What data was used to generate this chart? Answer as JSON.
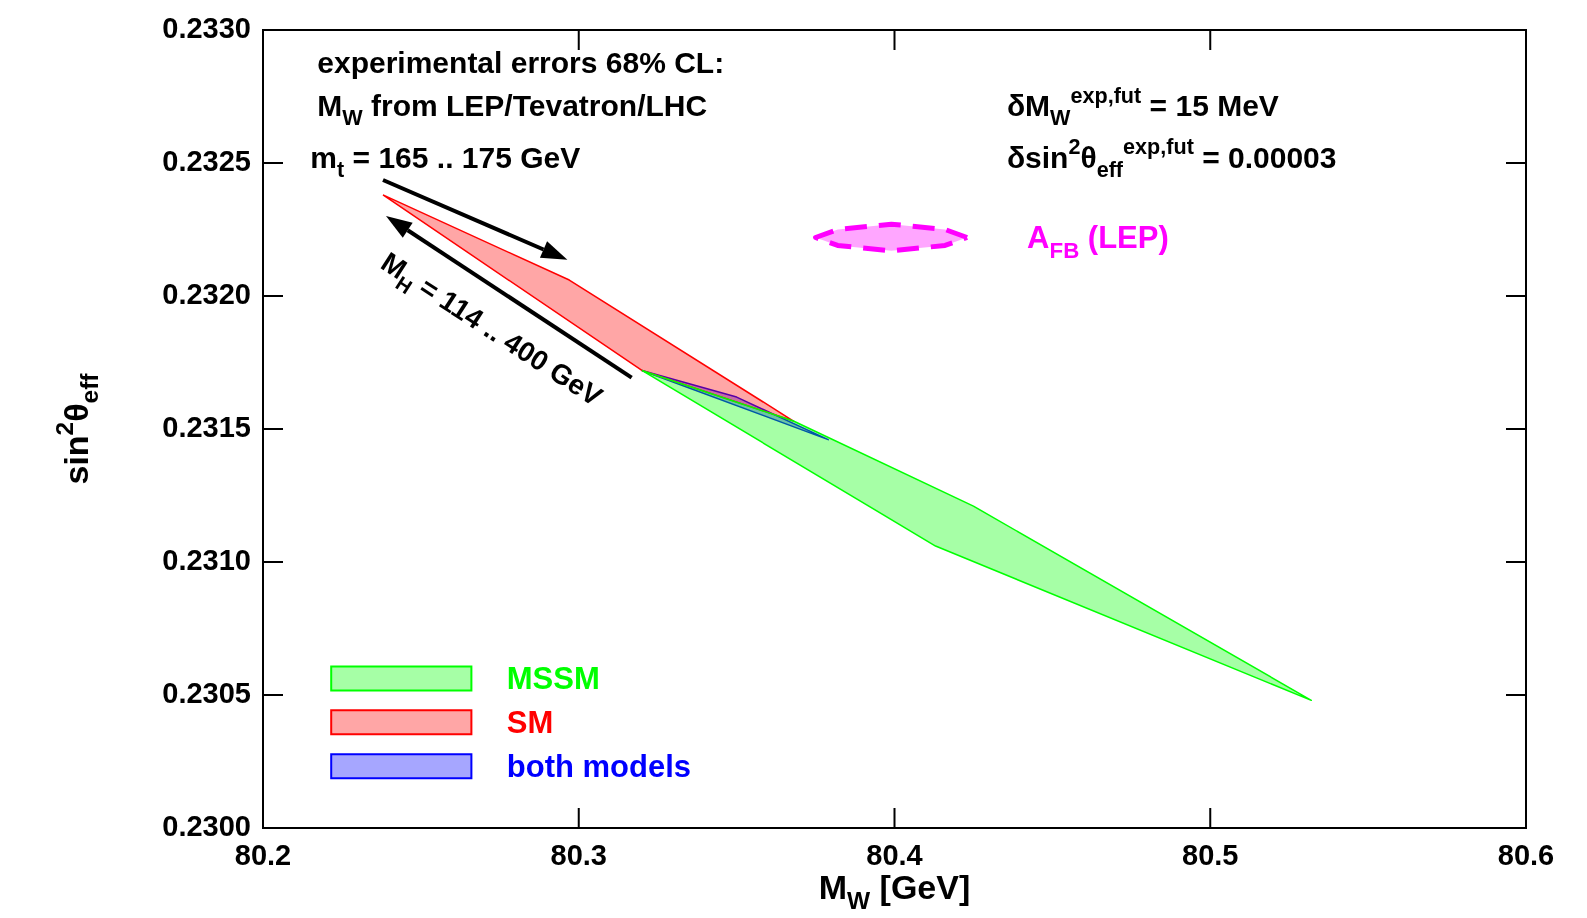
{
  "chart_data": {
    "type": "area",
    "xlabel": "M$_{W}$ [GeV]",
    "ylabel": "sin$^{2}$θ$_{eff}$",
    "xlim": [
      80.2,
      80.6
    ],
    "ylim": [
      0.23,
      0.233
    ],
    "xticks": [
      80.2,
      80.3,
      80.4,
      80.5,
      80.6
    ],
    "yticks": [
      {
        "value": 0.23,
        "label": "0.2300"
      },
      {
        "value": 0.2305,
        "label": "0.2305"
      },
      {
        "value": 0.231,
        "label": "0.2310"
      },
      {
        "value": 0.2315,
        "label": "0.2315"
      },
      {
        "value": 0.232,
        "label": "0.2320"
      },
      {
        "value": 0.2325,
        "label": "0.2325"
      },
      {
        "value": 0.233,
        "label": "0.2330"
      }
    ],
    "legend": "bottom left",
    "series": [
      {
        "name": "MSSM",
        "color": "#00ff00",
        "x": [
          80.32,
          80.368,
          80.425,
          80.532,
          80.413
        ],
        "values": [
          0.23172,
          0.23153,
          0.23121,
          0.23048,
          0.23106
        ]
      },
      {
        "name": "SM",
        "color": "#ff0000",
        "x": [
          80.238,
          80.297,
          80.368,
          80.32
        ],
        "values": [
          0.23238,
          0.23206,
          0.23153,
          0.23172
        ]
      },
      {
        "name": "both models",
        "color": "#0000ff",
        "x": [
          80.32,
          80.379,
          80.35
        ],
        "values": [
          0.23172,
          0.23146,
          0.23162
        ]
      },
      {
        "name": "A$_{FB}$ (LEP)",
        "color": "#ff00ff",
        "line_style": "dashed",
        "x": [
          80.423,
          80.416,
          80.399,
          80.382,
          80.375,
          80.382,
          80.399,
          80.416
        ],
        "values": [
          0.23222,
          0.23225,
          0.23227,
          0.23225,
          0.23222,
          0.23219,
          0.23217,
          0.23219
        ]
      }
    ],
    "annotations": [
      "experimental errors 68% CL:",
      "M$_{W}$ from LEP/Tevatron/LHC",
      "δM$_{W}$$^{exp,fut}$ = 15 MeV",
      "δsin$^{2}$θ$_{eff}$$^{exp,fut}$ = 0.00003",
      "m$_{t}$ = 165 .. 175 GeV",
      "M$_{H}$ = 114 .. 400 GeV"
    ]
  }
}
